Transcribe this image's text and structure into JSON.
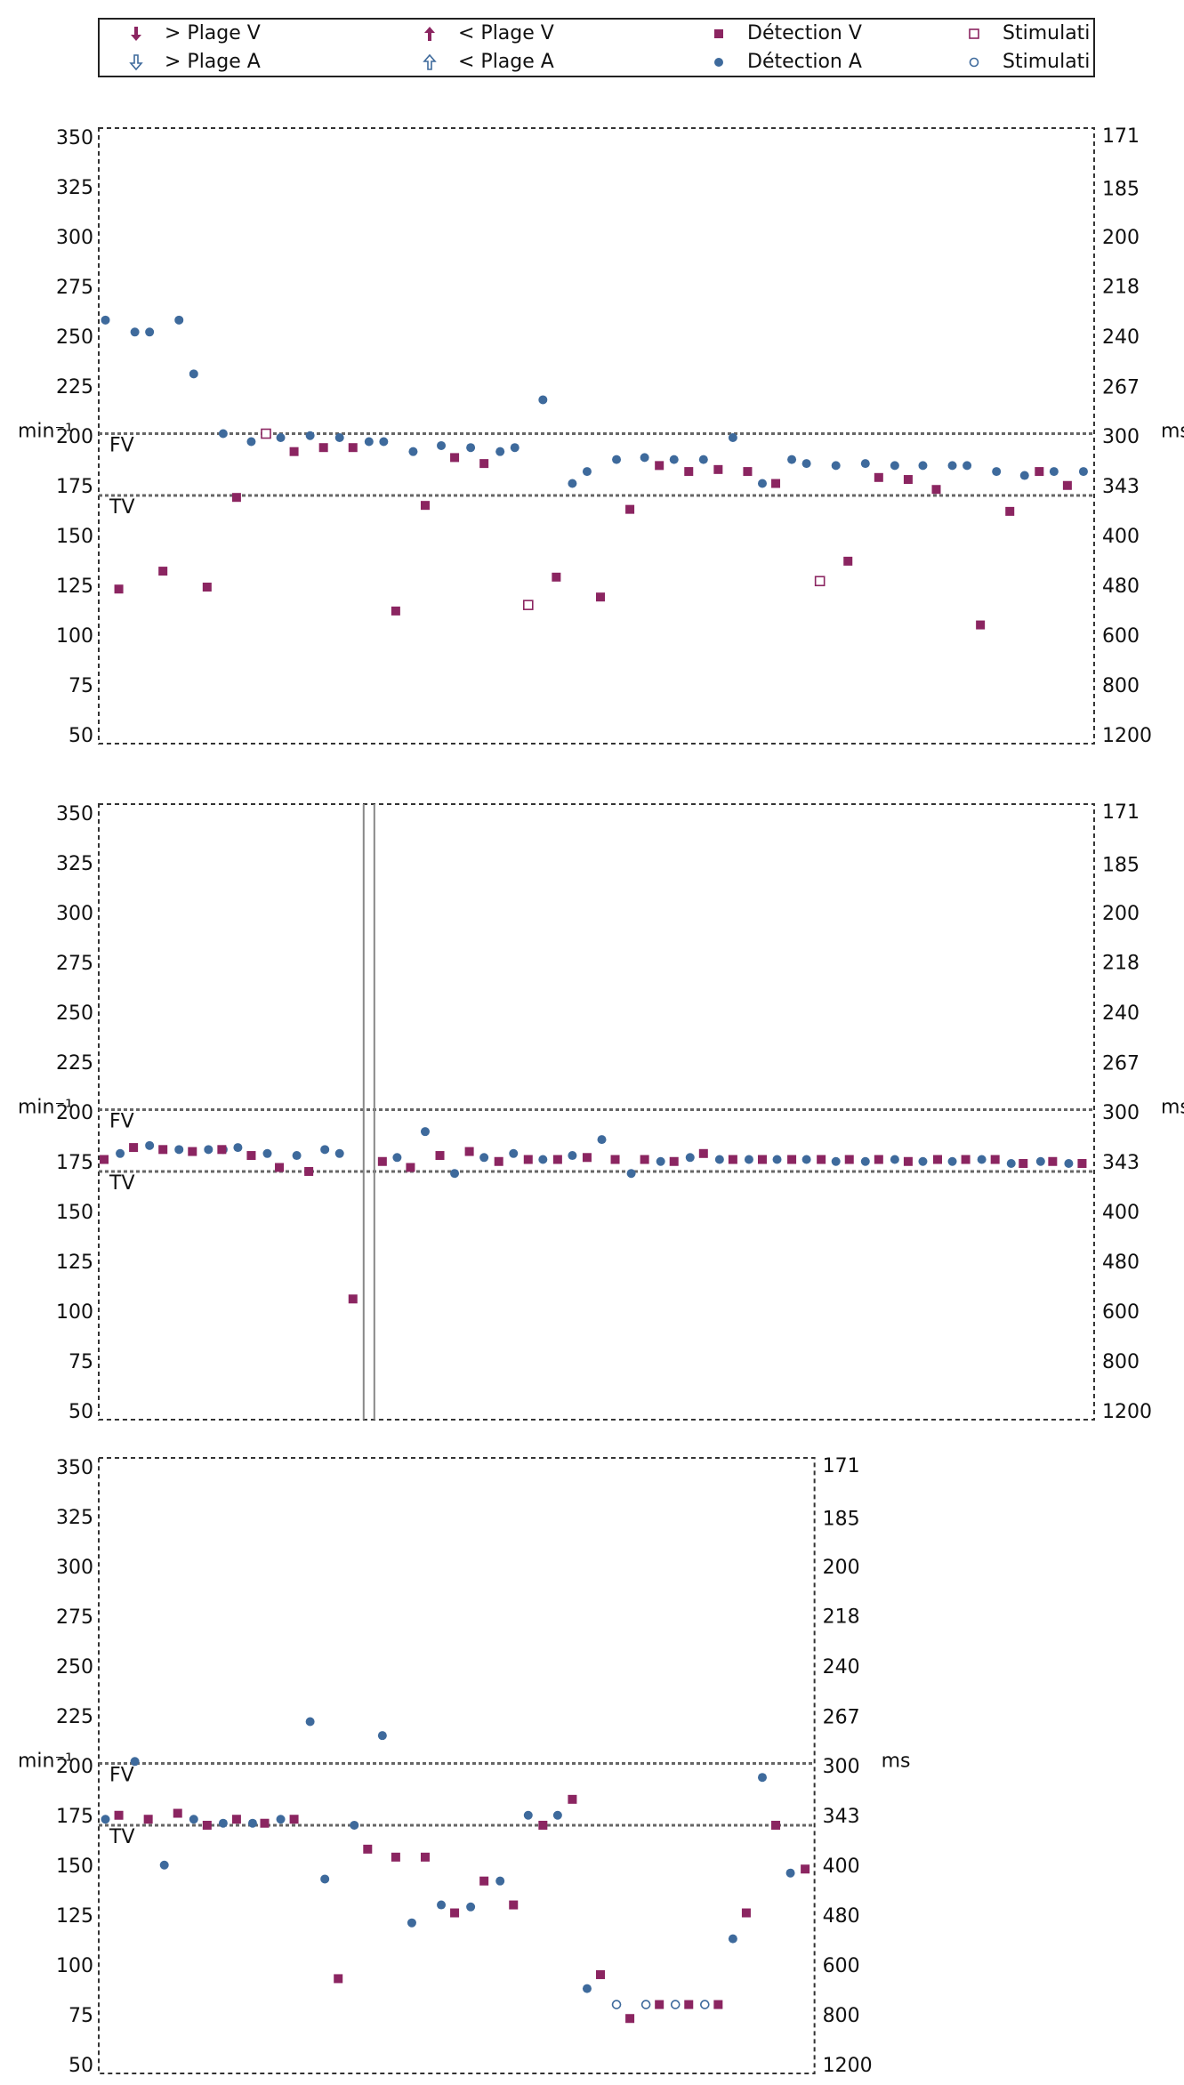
{
  "legend": [
    {
      "name": "> Plage V",
      "color": "#8b2561",
      "marker": "arrow-up-filled"
    },
    {
      "name": "< Plage V",
      "color": "#8b2561",
      "marker": "arrow-down-filled"
    },
    {
      "name": "Détection V",
      "color": "#8b2561",
      "marker": "square"
    },
    {
      "name": "Stimulati",
      "color": "#8b2561",
      "marker": "square-open"
    },
    {
      "name": "> Plage A",
      "color": "#3e6a9c",
      "marker": "arrow-up-open"
    },
    {
      "name": "< Plage A",
      "color": "#3e6a9c",
      "marker": "arrow-down-open"
    },
    {
      "name": "Détection A",
      "color": "#3e6a9c",
      "marker": "circle"
    },
    {
      "name": "Stimulati",
      "color": "#3e6a9c",
      "marker": "circle-open"
    }
  ],
  "chart_data": [
    {
      "type": "scatter",
      "ylabel": "min⁻¹",
      "y2label": "ms",
      "y2scale": "reciprocal",
      "xlim": [
        0,
        744
      ],
      "ylim": [
        50,
        350
      ],
      "yticks": [
        50,
        75,
        100,
        125,
        150,
        175,
        200,
        225,
        250,
        275,
        300,
        325,
        350
      ],
      "y2lim": [
        1200,
        171
      ],
      "y2ticks": [
        1200,
        800,
        600,
        480,
        400,
        343,
        300,
        267,
        240,
        218,
        200,
        185,
        171
      ],
      "reference_lines": [
        {
          "label": "FV",
          "value": 202
        },
        {
          "label": "TV",
          "value": 171
        }
      ],
      "series": [
        {
          "name": "Détection A",
          "color": "#3e6a9c",
          "marker": "circle",
          "x": [
            5,
            27,
            38,
            60,
            71,
            93,
            114,
            136,
            158,
            180,
            202,
            213,
            235,
            256,
            278,
            300,
            311,
            332,
            354,
            365,
            387,
            408,
            430,
            452,
            474,
            496,
            518,
            529,
            551,
            573,
            595,
            616,
            638,
            649,
            671,
            692,
            714,
            736
          ],
          "values": [
            259,
            253,
            253,
            259,
            232,
            202,
            198,
            200,
            201,
            200,
            198,
            198,
            193,
            196,
            195,
            193,
            195,
            219,
            177,
            183,
            189,
            190,
            189,
            189,
            200,
            177,
            189,
            187,
            186,
            187,
            186,
            186,
            186,
            186,
            183,
            181,
            183,
            183
          ]
        },
        {
          "name": "Détection V",
          "color": "#8b2561",
          "marker": "square",
          "x": [
            15,
            48,
            81,
            103,
            146,
            168,
            190,
            222,
            244,
            266,
            288,
            342,
            375,
            397,
            419,
            441,
            463,
            485,
            506,
            560,
            583,
            605,
            626,
            659,
            681,
            703,
            724
          ],
          "values": [
            124,
            133,
            125,
            170,
            193,
            195,
            195,
            113,
            166,
            190,
            187,
            130,
            120,
            164,
            186,
            183,
            184,
            183,
            177,
            138,
            180,
            179,
            174,
            106,
            163,
            183,
            176
          ]
        },
        {
          "name": "Stimulati",
          "color": "#8b2561",
          "marker": "square-open",
          "x": [
            125,
            321,
            539
          ],
          "values": [
            202,
            116,
            128
          ]
        }
      ]
    },
    {
      "type": "scatter",
      "ylabel": "min⁻¹",
      "y2label": "ms",
      "y2scale": "reciprocal",
      "xlim": [
        0,
        744
      ],
      "ylim": [
        50,
        350
      ],
      "yticks": [
        50,
        75,
        100,
        125,
        150,
        175,
        200,
        225,
        250,
        275,
        300,
        325,
        350
      ],
      "y2lim": [
        1200,
        171
      ],
      "y2ticks": [
        1200,
        800,
        600,
        480,
        400,
        343,
        300,
        267,
        240,
        218,
        200,
        185,
        171
      ],
      "reference_lines": [
        {
          "label": "FV",
          "value": 202
        },
        {
          "label": "TV",
          "value": 171
        }
      ],
      "markers_x": [
        198,
        206
      ],
      "series": [
        {
          "name": "Détection A",
          "color": "#3e6a9c",
          "marker": "circle",
          "x": [
            16,
            38,
            60,
            82,
            93,
            104,
            126,
            148,
            169,
            180,
            223,
            244,
            266,
            288,
            310,
            332,
            354,
            376,
            398,
            420,
            442,
            464,
            486,
            507,
            529,
            551,
            573,
            595,
            616,
            638,
            660,
            682,
            704,
            725
          ],
          "values": [
            180,
            184,
            182,
            182,
            182,
            183,
            180,
            179,
            182,
            180,
            178,
            191,
            170,
            178,
            180,
            177,
            179,
            187,
            170,
            176,
            178,
            177,
            177,
            177,
            177,
            176,
            176,
            177,
            176,
            176,
            177,
            175,
            176,
            175
          ]
        },
        {
          "name": "Détection V",
          "color": "#8b2561",
          "marker": "square",
          "x": [
            4,
            26,
            48,
            70,
            92,
            114,
            135,
            157,
            190,
            212,
            233,
            255,
            277,
            299,
            321,
            343,
            365,
            386,
            408,
            430,
            452,
            474,
            496,
            518,
            540,
            561,
            583,
            605,
            627,
            648,
            670,
            691,
            713,
            735
          ],
          "values": [
            177,
            183,
            182,
            181,
            182,
            179,
            173,
            171,
            107,
            176,
            173,
            179,
            181,
            176,
            177,
            177,
            178,
            177,
            177,
            176,
            180,
            177,
            177,
            177,
            177,
            177,
            177,
            176,
            177,
            177,
            177,
            175,
            176,
            175
          ]
        }
      ]
    },
    {
      "type": "scatter",
      "ylabel": "min⁻¹",
      "y2label": "ms",
      "y2scale": "reciprocal",
      "xlim": [
        0,
        535
      ],
      "ylim": [
        50,
        350
      ],
      "yticks": [
        50,
        75,
        100,
        125,
        150,
        175,
        200,
        225,
        250,
        275,
        300,
        325,
        350
      ],
      "y2lim": [
        1200,
        171
      ],
      "y2ticks": [
        1200,
        800,
        600,
        480,
        400,
        343,
        300,
        267,
        240,
        218,
        200,
        185,
        171
      ],
      "reference_lines": [
        {
          "label": "FV",
          "value": 202
        },
        {
          "label": "TV",
          "value": 171
        }
      ],
      "series": [
        {
          "name": "Détection A",
          "color": "#3e6a9c",
          "marker": "circle",
          "x": [
            5,
            27,
            49,
            71,
            93,
            115,
            136,
            158,
            169,
            191,
            212,
            234,
            256,
            278,
            300,
            321,
            343,
            365,
            474,
            496,
            517
          ],
          "values": [
            174,
            203,
            151,
            174,
            172,
            172,
            174,
            223,
            144,
            171,
            216,
            122,
            131,
            130,
            143,
            176,
            176,
            89,
            114,
            195,
            147
          ]
        },
        {
          "name": "Stimulati",
          "color": "#3e6a9c",
          "marker": "circle-open",
          "x": [
            387,
            409,
            431,
            453
          ],
          "values": [
            81,
            81,
            81,
            81
          ]
        },
        {
          "name": "Détection V",
          "color": "#8b2561",
          "marker": "square",
          "x": [
            15,
            37,
            59,
            81,
            103,
            124,
            146,
            179,
            201,
            222,
            244,
            266,
            288,
            310,
            332,
            354,
            375,
            397,
            419,
            441,
            463,
            484,
            506,
            528
          ],
          "values": [
            176,
            174,
            177,
            171,
            174,
            172,
            174,
            94,
            159,
            155,
            155,
            127,
            143,
            131,
            171,
            184,
            96,
            74,
            81,
            81,
            81,
            127,
            171,
            149
          ]
        }
      ]
    }
  ]
}
